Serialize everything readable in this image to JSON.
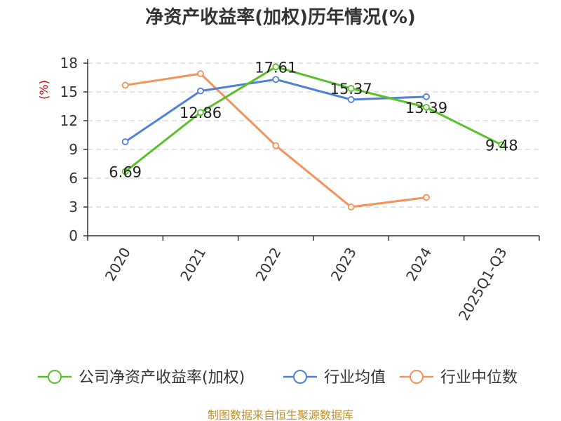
{
  "chart_data": {
    "type": "line",
    "title": "净资产收益率(加权)历年情况(%)",
    "ylabel": "(%)",
    "xlabel": "",
    "categories": [
      "2020",
      "2021",
      "2022",
      "2023",
      "2024",
      "2025Q1-Q3"
    ],
    "ylim": [
      0,
      18
    ],
    "yticks": [
      0,
      3,
      6,
      9,
      12,
      15,
      18
    ],
    "grid": true,
    "legend_position": "bottom",
    "series": [
      {
        "name": "公司净资产收益率(加权)",
        "color": "#5ac02a",
        "values": [
          6.69,
          12.86,
          17.61,
          15.37,
          13.39,
          9.48
        ],
        "labels": [
          "6.69",
          "12.86",
          "17.61",
          "15.37",
          "13.39",
          "9.48"
        ]
      },
      {
        "name": "行业均值",
        "color": "#4f7fd6",
        "values": [
          9.8,
          15.1,
          16.3,
          14.2,
          14.5,
          null
        ]
      },
      {
        "name": "行业中位数",
        "color": "#f4925a",
        "values": [
          15.7,
          16.9,
          9.4,
          3.0,
          4.0,
          null
        ]
      }
    ]
  },
  "source": "制图数据来自恒生聚源数据库"
}
